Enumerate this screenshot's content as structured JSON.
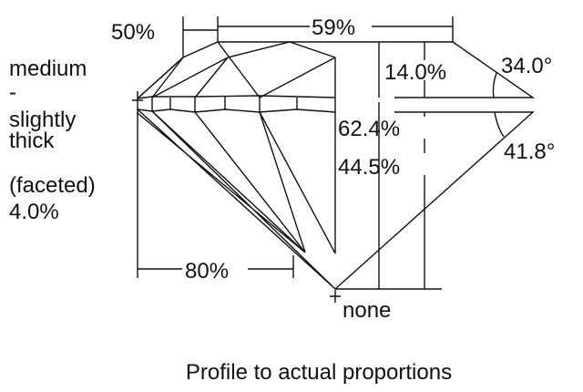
{
  "diagram": {
    "caption": "Profile to actual proportions",
    "girdle_label": [
      "medium",
      "-",
      "slightly",
      "thick",
      "(faceted)",
      "4.0%"
    ],
    "table_pct": "59%",
    "star_length": "50%",
    "lower_half": "80%",
    "crown_height": "14.0%",
    "total_depth": "62.4%",
    "pavilion_depth": "44.5%",
    "crown_angle": "34.0°",
    "pavilion_angle": "41.8°",
    "culet": "none"
  }
}
